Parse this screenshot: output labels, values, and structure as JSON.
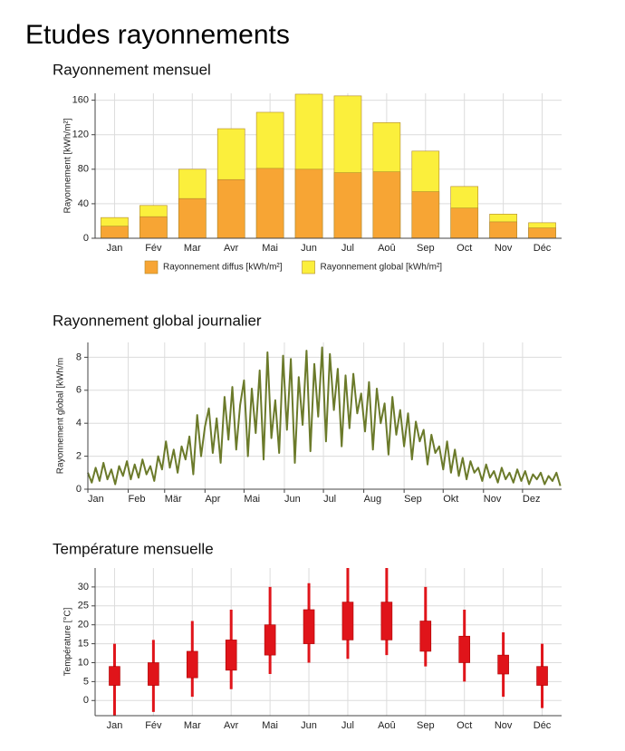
{
  "heading": "Etudes rayonnements",
  "chart_data": [
    {
      "type": "bar",
      "title": "Rayonnement mensuel",
      "ylabel": "Rayonnement [kWh/m²]",
      "bar_mode": "overlay",
      "categories": [
        "Jan",
        "Fév",
        "Mar",
        "Avr",
        "Mai",
        "Jun",
        "Jul",
        "Aoû",
        "Sep",
        "Oct",
        "Nov",
        "Déc"
      ],
      "series": [
        {
          "name": "Rayonnement diffus [kWh/m²]",
          "color": "#f7a534",
          "values": [
            14,
            25,
            46,
            68,
            81,
            80,
            76,
            77,
            54,
            35,
            19,
            12
          ]
        },
        {
          "name": "Rayonnement global  [kWh/m²]",
          "color": "#fbef3c",
          "values": [
            24,
            38,
            80,
            127,
            146,
            167,
            165,
            134,
            101,
            60,
            28,
            18
          ]
        }
      ],
      "ylim": [
        0,
        168
      ],
      "yticks": [
        0,
        40,
        80,
        120,
        160
      ],
      "grid": true,
      "legend": "bottom"
    },
    {
      "type": "line",
      "title": "Rayonnement global journalier",
      "ylabel": "Rayonnement global [kWh/m",
      "color": "#6b7a2a",
      "x": [
        1,
        4,
        7,
        10,
        13,
        16,
        19,
        22,
        25,
        28,
        31,
        34,
        37,
        40,
        43,
        46,
        49,
        52,
        55,
        58,
        61,
        64,
        67,
        70,
        73,
        76,
        79,
        82,
        85,
        88,
        91,
        94,
        97,
        100,
        103,
        106,
        109,
        112,
        115,
        118,
        121,
        124,
        127,
        130,
        133,
        136,
        139,
        142,
        145,
        148,
        151,
        154,
        157,
        160,
        163,
        166,
        169,
        172,
        175,
        178,
        181,
        184,
        187,
        190,
        193,
        196,
        199,
        202,
        205,
        208,
        211,
        214,
        217,
        220,
        223,
        226,
        229,
        232,
        235,
        238,
        241,
        244,
        247,
        250,
        253,
        256,
        259,
        262,
        265,
        268,
        271,
        274,
        277,
        280,
        283,
        286,
        289,
        292,
        295,
        298,
        301,
        304,
        307,
        310,
        313,
        316,
        319,
        322,
        325,
        328,
        331,
        334,
        337,
        340,
        343,
        346,
        349,
        352,
        355,
        358,
        361,
        364
      ],
      "values": [
        1.0,
        0.4,
        1.3,
        0.5,
        1.6,
        0.6,
        1.2,
        0.3,
        1.4,
        0.8,
        1.7,
        0.6,
        1.5,
        0.7,
        1.8,
        0.9,
        1.4,
        0.5,
        2.0,
        1.2,
        2.9,
        1.3,
        2.4,
        1.0,
        2.6,
        1.8,
        3.2,
        0.9,
        4.5,
        2.0,
        3.8,
        4.9,
        2.2,
        4.3,
        1.6,
        5.6,
        3.0,
        6.2,
        2.4,
        5.1,
        6.6,
        2.0,
        6.1,
        3.4,
        7.2,
        1.8,
        8.3,
        3.1,
        5.4,
        2.2,
        8.1,
        3.6,
        7.9,
        1.6,
        6.8,
        3.9,
        8.4,
        2.3,
        7.6,
        4.4,
        8.6,
        2.9,
        8.2,
        4.8,
        7.3,
        2.6,
        6.9,
        3.7,
        7.0,
        4.6,
        5.8,
        3.5,
        6.5,
        2.4,
        6.1,
        4.0,
        5.2,
        2.1,
        5.6,
        3.3,
        4.8,
        2.6,
        4.6,
        1.8,
        4.1,
        2.9,
        3.6,
        1.5,
        3.3,
        2.2,
        2.6,
        1.2,
        2.9,
        1.0,
        2.4,
        0.8,
        1.9,
        0.6,
        1.7,
        1.0,
        1.3,
        0.5,
        1.5,
        0.7,
        1.1,
        0.4,
        1.3,
        0.6,
        1.0,
        0.4,
        1.2,
        0.5,
        1.1,
        0.3,
        0.9,
        0.6,
        1.0,
        0.3,
        0.8,
        0.5,
        1.0,
        0.2
      ],
      "xlim": [
        1,
        365
      ],
      "xticks": [
        {
          "value": 1,
          "label": "Jan"
        },
        {
          "value": 32,
          "label": "Feb"
        },
        {
          "value": 60,
          "label": "Mär"
        },
        {
          "value": 91,
          "label": "Apr"
        },
        {
          "value": 121,
          "label": "Mai"
        },
        {
          "value": 152,
          "label": "Jun"
        },
        {
          "value": 182,
          "label": "Jul"
        },
        {
          "value": 213,
          "label": "Aug"
        },
        {
          "value": 244,
          "label": "Sep"
        },
        {
          "value": 274,
          "label": "Okt"
        },
        {
          "value": 305,
          "label": "Nov"
        },
        {
          "value": 335,
          "label": "Dez"
        }
      ],
      "ylim": [
        0,
        8.9
      ],
      "yticks": [
        0,
        2,
        4,
        6,
        8
      ],
      "grid": true
    },
    {
      "type": "range",
      "title": "Température mensuelle",
      "ylabel": "Température [°C]",
      "color": "#e0141a",
      "categories": [
        "Jan",
        "Fév",
        "Mar",
        "Avr",
        "Mai",
        "Jun",
        "Jul",
        "Aoû",
        "Sep",
        "Oct",
        "Nov",
        "Déc"
      ],
      "min": [
        -4,
        -3,
        1,
        3,
        7,
        10,
        11,
        12,
        9,
        5,
        1,
        -2
      ],
      "low": [
        4,
        4,
        6,
        8,
        12,
        15,
        16,
        16,
        13,
        10,
        7,
        4
      ],
      "high": [
        9,
        10,
        13,
        16,
        20,
        24,
        26,
        26,
        21,
        17,
        12,
        9
      ],
      "max": [
        15,
        16,
        21,
        24,
        30,
        31,
        35,
        35,
        30,
        24,
        18,
        15
      ],
      "ylim": [
        -4,
        35
      ],
      "yticks": [
        0,
        5,
        10,
        15,
        20,
        25,
        30
      ],
      "grid": true
    }
  ]
}
